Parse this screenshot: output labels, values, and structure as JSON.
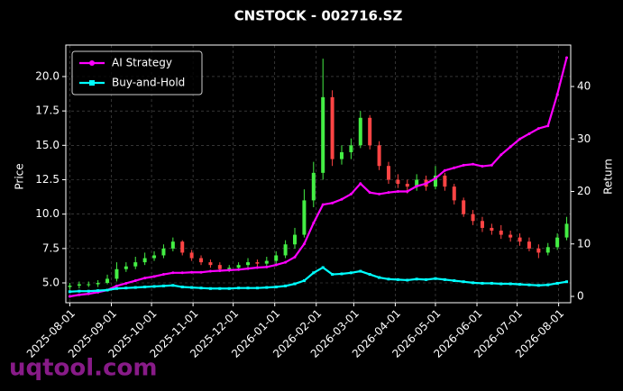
{
  "chart_data": {
    "type": "candlestick",
    "title": "CNSTOCK - 002716.SZ",
    "y_label": "Price",
    "y2_label": "Return",
    "watermark": "uqtool.com",
    "x": [
      "2025-08-01",
      "2025-08-08",
      "2025-08-15",
      "2025-08-22",
      "2025-08-29",
      "2025-09-05",
      "2025-09-12",
      "2025-09-19",
      "2025-09-26",
      "2025-10-03",
      "2025-10-10",
      "2025-10-17",
      "2025-10-24",
      "2025-10-31",
      "2025-11-07",
      "2025-11-14",
      "2025-11-21",
      "2025-11-28",
      "2025-12-05",
      "2025-12-12",
      "2025-12-19",
      "2025-12-26",
      "2026-01-02",
      "2026-01-09",
      "2026-01-16",
      "2026-01-23",
      "2026-01-30",
      "2026-02-06",
      "2026-02-13",
      "2026-02-20",
      "2026-02-27",
      "2026-03-06",
      "2026-03-13",
      "2026-03-20",
      "2026-03-27",
      "2026-04-03",
      "2026-04-10",
      "2026-04-17",
      "2026-04-24",
      "2026-05-01",
      "2026-05-08",
      "2026-05-15",
      "2026-05-22",
      "2026-05-29",
      "2026-06-05",
      "2026-06-12",
      "2026-06-19",
      "2026-06-26",
      "2026-07-03",
      "2026-07-10",
      "2026-07-17",
      "2026-07-24",
      "2026-07-31",
      "2026-08-07"
    ],
    "open": [
      4.7,
      4.8,
      4.9,
      4.9,
      5.0,
      5.3,
      6.0,
      6.2,
      6.5,
      6.8,
      7.0,
      7.5,
      8.0,
      7.2,
      6.8,
      6.5,
      6.3,
      6.0,
      6.1,
      6.3,
      6.5,
      6.4,
      6.6,
      7.0,
      7.8,
      8.5,
      11.0,
      13.0,
      18.5,
      14.0,
      14.5,
      15.0,
      17.0,
      15.0,
      13.5,
      12.5,
      12.2,
      12.0,
      12.5,
      12.0,
      12.8,
      12.0,
      11.0,
      10.0,
      9.5,
      9.0,
      8.8,
      8.5,
      8.3,
      8.0,
      7.5,
      7.2,
      7.6,
      8.3
    ],
    "high": [
      5.0,
      5.1,
      5.1,
      5.2,
      5.6,
      6.5,
      6.5,
      6.9,
      7.2,
      7.3,
      7.8,
      8.3,
      8.1,
      7.4,
      7.0,
      6.7,
      6.5,
      6.3,
      6.5,
      6.8,
      6.7,
      6.9,
      7.3,
      8.1,
      9.0,
      11.8,
      13.8,
      21.3,
      19.0,
      15.0,
      15.5,
      17.5,
      17.2,
      15.3,
      13.8,
      12.9,
      12.5,
      12.9,
      12.8,
      13.5,
      13.0,
      12.2,
      11.2,
      10.3,
      9.8,
      9.3,
      9.2,
      8.8,
      8.6,
      8.3,
      7.8,
      7.9,
      8.6,
      9.8
    ],
    "low": [
      4.5,
      4.6,
      4.7,
      4.7,
      4.9,
      5.1,
      5.8,
      6.0,
      6.3,
      6.6,
      6.8,
      7.3,
      7.0,
      6.6,
      6.3,
      6.1,
      5.8,
      5.8,
      5.9,
      6.1,
      6.2,
      6.2,
      6.4,
      6.8,
      7.5,
      8.3,
      10.5,
      12.5,
      13.5,
      13.6,
      14.0,
      14.8,
      14.7,
      13.2,
      12.2,
      11.9,
      11.5,
      11.7,
      11.7,
      11.8,
      11.7,
      10.7,
      9.8,
      9.2,
      8.7,
      8.5,
      8.2,
      8.0,
      7.7,
      7.3,
      6.8,
      7.0,
      7.4,
      8.1
    ],
    "close": [
      4.8,
      4.9,
      4.9,
      5.0,
      5.3,
      6.0,
      6.2,
      6.5,
      6.8,
      7.0,
      7.5,
      8.0,
      7.2,
      6.8,
      6.5,
      6.3,
      6.0,
      6.1,
      6.3,
      6.5,
      6.4,
      6.6,
      7.0,
      7.8,
      8.5,
      11.0,
      13.0,
      18.5,
      14.0,
      14.5,
      15.0,
      17.0,
      15.0,
      13.5,
      12.5,
      12.2,
      12.0,
      12.5,
      12.0,
      12.8,
      12.0,
      11.0,
      10.0,
      9.5,
      9.0,
      8.8,
      8.5,
      8.3,
      8.0,
      7.5,
      7.2,
      7.6,
      8.3,
      9.3
    ],
    "up_color": "#44ee44",
    "down_color": "#ff4444",
    "series": [
      {
        "name": "AI Strategy",
        "color": "#ff00ff",
        "axis": "y2",
        "marker": "circle",
        "values": [
          0,
          0.3,
          0.5,
          0.8,
          1.2,
          2.0,
          2.5,
          3.0,
          3.5,
          3.8,
          4.2,
          4.5,
          4.5,
          4.6,
          4.6,
          4.8,
          4.9,
          5.0,
          5.1,
          5.3,
          5.5,
          5.6,
          6.0,
          6.5,
          7.5,
          10.0,
          14.0,
          17.5,
          17.8,
          18.5,
          19.5,
          21.5,
          19.8,
          19.5,
          19.8,
          20.0,
          20.0,
          21.0,
          21.5,
          22.5,
          24.0,
          24.5,
          25.0,
          25.2,
          24.8,
          25.0,
          27.0,
          28.5,
          30.0,
          31.0,
          32.0,
          32.5,
          38.5,
          45.5
        ]
      },
      {
        "name": "Buy-and-Hold",
        "color": "#00ffff",
        "axis": "y2",
        "marker": "square",
        "values": [
          0.9,
          1.0,
          1.0,
          1.1,
          1.2,
          1.5,
          1.6,
          1.7,
          1.8,
          1.9,
          2.0,
          2.1,
          1.8,
          1.7,
          1.6,
          1.5,
          1.5,
          1.5,
          1.6,
          1.6,
          1.6,
          1.7,
          1.8,
          2.0,
          2.4,
          3.0,
          4.5,
          5.5,
          4.2,
          4.3,
          4.5,
          4.8,
          4.2,
          3.6,
          3.3,
          3.2,
          3.1,
          3.3,
          3.2,
          3.4,
          3.2,
          3.0,
          2.8,
          2.6,
          2.5,
          2.5,
          2.4,
          2.4,
          2.3,
          2.2,
          2.1,
          2.2,
          2.5,
          2.8
        ]
      }
    ],
    "xlim": [
      "2025-07-29",
      "2026-08-10"
    ],
    "xticks": [
      "2025-08-01",
      "2025-09-01",
      "2025-10-01",
      "2025-11-01",
      "2025-12-01",
      "2026-01-01",
      "2026-02-01",
      "2026-03-01",
      "2026-04-01",
      "2026-05-01",
      "2026-06-01",
      "2026-07-01",
      "2026-08-01"
    ],
    "ylim": [
      3.56,
      22.29
    ],
    "yticks": [
      {
        "value": 5,
        "label": "5.0"
      },
      7.5,
      {
        "value": 10,
        "label": "10.0"
      },
      12.5,
      {
        "value": 15,
        "label": "15.0"
      },
      17.5,
      {
        "value": 20,
        "label": "20.0"
      }
    ],
    "y2lim": [
      -1.2,
      47.9
    ],
    "y2ticks": [
      0,
      10,
      20,
      30,
      40
    ],
    "grid": true,
    "legend": "upper left"
  }
}
